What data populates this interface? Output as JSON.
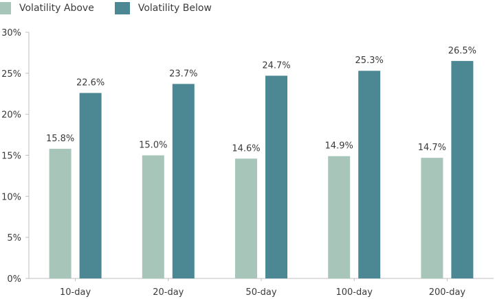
{
  "legend": {
    "items": [
      {
        "label": "Volatility Above",
        "color": "#a8c5b9"
      },
      {
        "label": "Volatility Below",
        "color": "#4b8893"
      }
    ]
  },
  "chart_data": {
    "type": "bar",
    "categories": [
      "10-day",
      "20-day",
      "50-day",
      "100-day",
      "200-day"
    ],
    "series": [
      {
        "name": "Volatility Above",
        "color": "#a8c5b9",
        "values": [
          15.8,
          15.0,
          14.6,
          14.9,
          14.7
        ],
        "labels": [
          "15.8%",
          "15.0%",
          "14.6%",
          "14.9%",
          "14.7%"
        ]
      },
      {
        "name": "Volatility Below",
        "color": "#4b8893",
        "values": [
          22.6,
          23.7,
          24.7,
          25.3,
          26.5
        ],
        "labels": [
          "22.6%",
          "23.7%",
          "24.7%",
          "25.3%",
          "26.5%"
        ]
      }
    ],
    "ylim": [
      0,
      30
    ],
    "yticks": [
      0,
      5,
      10,
      15,
      20,
      25,
      30
    ],
    "ytick_labels": [
      "0%",
      "5%",
      "10%",
      "15%",
      "20%",
      "25%",
      "30%"
    ],
    "grid": false,
    "legend_position": "top-left",
    "axis_color": "#bfbfbf",
    "text_color": "#3a3a3a"
  }
}
